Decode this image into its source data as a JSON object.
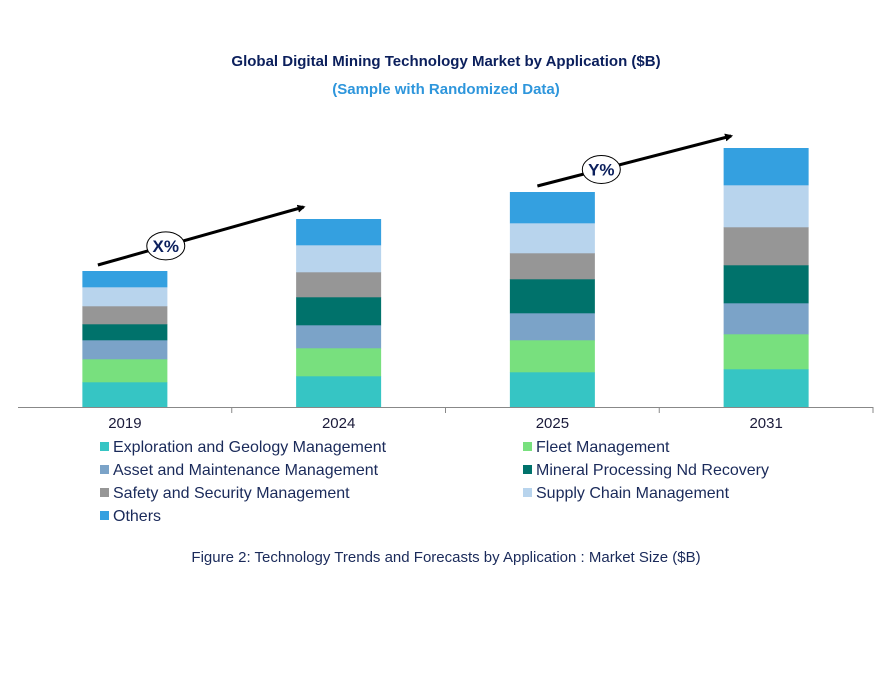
{
  "chart_data": {
    "type": "bar",
    "stacked": true,
    "title": "Global Digital Mining Technology Market by Application ($B)",
    "subtitle": "(Sample with Randomized Data)",
    "xlabel": "",
    "ylabel": "",
    "categories": [
      "2019",
      "2024",
      "2025",
      "2031"
    ],
    "ylim": [
      0,
      27
    ],
    "grid": false,
    "legend_position": "bottom",
    "series": [
      {
        "name": "Exploration and Geology Management",
        "color": "#36c5c4",
        "values": [
          2.5,
          3.1,
          3.5,
          3.8
        ]
      },
      {
        "name": "Fleet Management",
        "color": "#78e07e",
        "values": [
          2.3,
          2.8,
          3.2,
          3.5
        ]
      },
      {
        "name": "Asset and Maintenance Management",
        "color": "#7ba3c8",
        "values": [
          1.9,
          2.3,
          2.7,
          3.1
        ]
      },
      {
        "name": "Mineral Processing Nd Recovery",
        "color": "#00726b",
        "values": [
          1.6,
          2.8,
          3.4,
          3.8
        ]
      },
      {
        "name": "Safety and Security Management",
        "color": "#969696",
        "values": [
          1.8,
          2.5,
          2.6,
          3.8
        ]
      },
      {
        "name": "Supply Chain Management",
        "color": "#b8d4ed",
        "values": [
          1.9,
          2.7,
          3.0,
          4.2
        ]
      },
      {
        "name": "Others",
        "color": "#34a0e0",
        "values": [
          1.6,
          2.6,
          3.1,
          3.7
        ]
      }
    ],
    "annotations": [
      {
        "text": "X%",
        "from": "2019",
        "to": "2024"
      },
      {
        "text": "Y%",
        "from": "2025",
        "to": "2031"
      }
    ]
  },
  "caption": "Figure 2: Technology  Trends  and Forecasts by Application : Market Size ($B)"
}
